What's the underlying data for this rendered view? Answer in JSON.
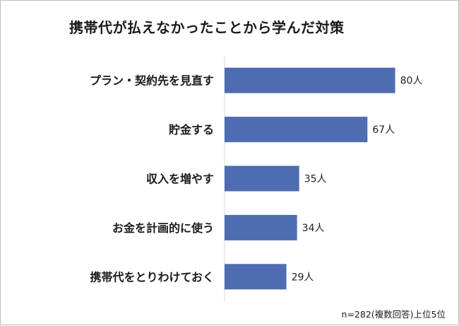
{
  "chart_data": {
    "type": "bar",
    "orientation": "horizontal",
    "title": "携帯代が払えなかったことから学んだ対策",
    "categories": [
      "プラン・契約先を見直す",
      "貯金する",
      "収入を増やす",
      "お金を計画的に使う",
      "携帯代をとりわけておく"
    ],
    "values": [
      80,
      67,
      35,
      34,
      29
    ],
    "value_suffix": "人",
    "note": "n=282(複数回答)上位5位",
    "xlim": [
      0,
      100
    ],
    "grid": false,
    "legend": "none",
    "bar_color": "#4f6cb3",
    "axis_color": "#d9d9d9"
  }
}
